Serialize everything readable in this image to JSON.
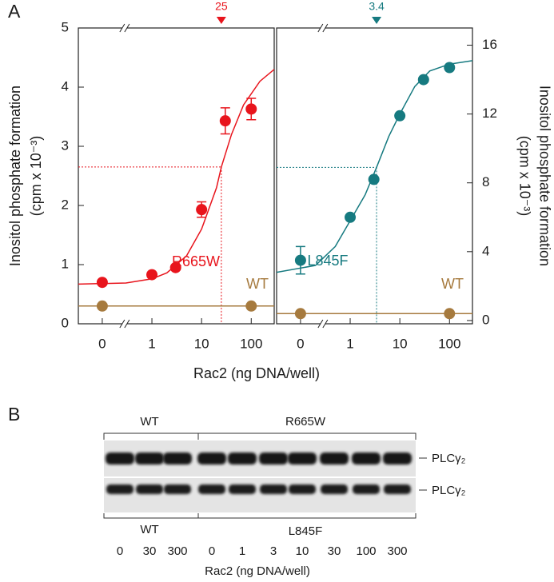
{
  "panel_labels": [
    "A",
    "B"
  ],
  "chart_data": [
    {
      "type": "scatter",
      "xlabel": "Rac2 (ng DNA/well)",
      "ylabel": [
        "Inositol phosphate formation",
        "(cpm x 10⁻³)"
      ],
      "yaxis": "left",
      "xscale": "log",
      "x_break": true,
      "xlim": [
        0.033,
        290
      ],
      "xticks": [
        0,
        1,
        10,
        100
      ],
      "ylim": [
        0,
        5
      ],
      "yticks": [
        0,
        1,
        2,
        3,
        4,
        5
      ],
      "ec50": 25,
      "ec50_level": 2.65,
      "ec50_color": "#e8141c",
      "series": [
        {
          "name": "R665W",
          "color": "#e8141c",
          "x": [
            0,
            1,
            3,
            10,
            30,
            100
          ],
          "values": [
            0.7,
            0.83,
            0.95,
            1.93,
            3.43,
            3.63
          ],
          "errors": [
            null,
            null,
            null,
            0.13,
            0.22,
            0.18
          ]
        },
        {
          "name": "WT",
          "color": "#a67a3e",
          "x": [
            0,
            100
          ],
          "values": [
            0.3,
            0.3
          ],
          "errors": [
            null,
            null
          ]
        }
      ],
      "fits": [
        {
          "color": "#e8141c",
          "x": [
            0.033,
            0.3,
            1,
            2,
            5,
            10,
            20,
            25,
            40,
            70,
            150,
            290
          ],
          "values": [
            0.67,
            0.69,
            0.76,
            0.86,
            1.15,
            1.6,
            2.3,
            2.65,
            3.2,
            3.7,
            4.1,
            4.3
          ]
        },
        {
          "color": "#a67a3e",
          "x": [
            0.033,
            290
          ],
          "values": [
            0.3,
            0.3
          ]
        }
      ]
    },
    {
      "type": "scatter",
      "ylabel": [
        "Inositol phosphate formation",
        "(cpm x 10⁻³)"
      ],
      "yaxis": "right",
      "xscale": "log",
      "x_break": true,
      "xlim": [
        0.033,
        290
      ],
      "xticks": [
        0,
        1,
        10,
        100
      ],
      "ylim": [
        -0.19,
        17
      ],
      "yticks": [
        0,
        4,
        8,
        12,
        16
      ],
      "ec50": 3.4,
      "ec50_level": 8.9,
      "ec50_color": "#167a80",
      "series": [
        {
          "name": "L845F",
          "color": "#167a80",
          "x": [
            0,
            1,
            3,
            10,
            30,
            100
          ],
          "values": [
            3.5,
            6,
            8.2,
            11.9,
            14,
            14.7
          ],
          "errors": [
            0.8,
            null,
            null,
            null,
            null,
            null
          ]
        },
        {
          "name": "WT",
          "color": "#a67a3e",
          "x": [
            0,
            100
          ],
          "values": [
            0.4,
            0.4
          ],
          "errors": [
            null,
            null
          ]
        }
      ],
      "fits": [
        {
          "color": "#167a80",
          "x": [
            0.033,
            0.2,
            0.5,
            1,
            2,
            3.4,
            6,
            10,
            20,
            40,
            100,
            290
          ],
          "values": [
            2.8,
            3.2,
            4.3,
            5.8,
            7.3,
            8.9,
            10.7,
            12.0,
            13.6,
            14.5,
            14.9,
            15.1
          ]
        },
        {
          "color": "#a67a3e",
          "x": [
            0.033,
            290
          ],
          "values": [
            0.4,
            0.4
          ]
        }
      ]
    }
  ],
  "blot": {
    "groups_top": [
      "WT",
      "R665W"
    ],
    "groups_bottom": [
      "WT",
      "L845F"
    ],
    "bands": [
      "PLCγ₂",
      "PLCγ₂"
    ],
    "lanes": [
      0,
      30,
      300,
      0,
      1,
      3,
      10,
      30,
      100,
      300
    ],
    "xlabel": "Rac2 (ng DNA/well)"
  }
}
